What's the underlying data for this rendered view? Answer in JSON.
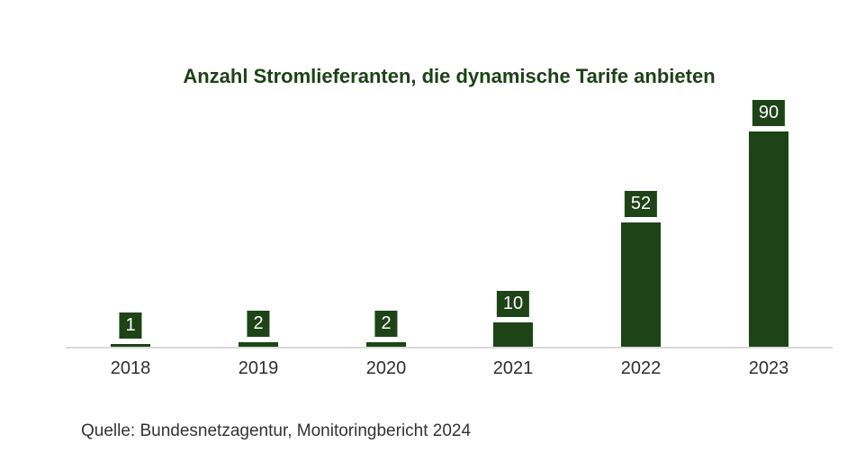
{
  "chart": {
    "title": "Anzahl Stromlieferanten, die dynamische Tarife anbieten",
    "source": "Quelle: Bundesnetzagentur, Monitoringbericht 2024"
  },
  "chart_data": {
    "type": "bar",
    "categories": [
      "2018",
      "2019",
      "2020",
      "2021",
      "2022",
      "2023"
    ],
    "values": [
      1,
      2,
      2,
      10,
      52,
      90
    ],
    "data_labels": [
      "1",
      "2",
      "2",
      "10",
      "52",
      "90"
    ],
    "title": "Anzahl Stromlieferanten, die dynamische Tarife anbieten",
    "xlabel": "",
    "ylabel": "",
    "ylim": [
      0,
      95
    ],
    "grid": false,
    "legend": false,
    "annotation": "Quelle: Bundesnetzagentur, Monitoringbericht 2024",
    "colors": {
      "bar": "#1d4317",
      "value_label_bg": "#1d4317",
      "value_label_text": "#ffffff",
      "title_text": "#1d4217",
      "axis_line": "#d9d9d9",
      "tick_text": "#2e2e2e",
      "source_text": "#333333",
      "background": "#ffffff"
    }
  }
}
